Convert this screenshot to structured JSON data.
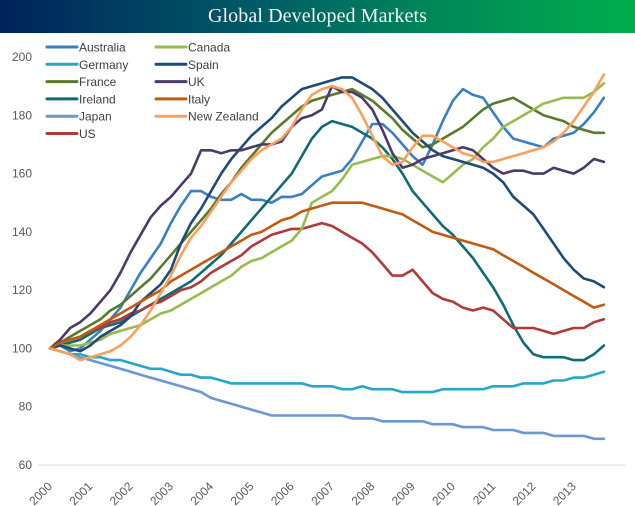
{
  "chart_data": {
    "type": "line",
    "title": "Global Developed Markets",
    "xlabel": "",
    "ylabel": "",
    "ylim": [
      60,
      200
    ],
    "yticks": [
      60,
      80,
      100,
      120,
      140,
      160,
      180,
      200
    ],
    "xlim": [
      2000,
      2014
    ],
    "xticks": [
      "2000",
      "2001",
      "2002",
      "2003",
      "2004",
      "2005",
      "2006",
      "2007",
      "2008",
      "2009",
      "2010",
      "2011",
      "2012",
      "2013"
    ],
    "grid": false,
    "legend_position": "top-left",
    "frequency": "quarterly",
    "x_start": 2000,
    "series": [
      {
        "name": "Australia",
        "color": "#3a7fc1",
        "values": [
          100,
          101,
          99,
          100,
          103,
          106,
          110,
          114,
          120,
          126,
          131,
          136,
          143,
          149,
          154,
          154,
          152,
          151,
          151,
          153,
          151,
          151,
          150,
          152,
          152,
          153,
          156,
          159,
          160,
          161,
          165,
          171,
          177,
          177,
          174,
          170,
          166,
          163,
          170,
          178,
          185,
          189,
          187,
          186,
          181,
          176,
          172,
          171,
          170,
          169,
          172,
          173,
          174,
          177,
          181,
          186
        ]
      },
      {
        "name": "Germany",
        "color": "#26a6c8",
        "values": [
          100,
          99,
          98,
          98,
          97,
          97,
          96,
          96,
          95,
          94,
          93,
          93,
          92,
          91,
          91,
          90,
          90,
          89,
          88,
          88,
          88,
          88,
          88,
          88,
          88,
          88,
          87,
          87,
          87,
          86,
          86,
          87,
          86,
          86,
          86,
          85,
          85,
          85,
          85,
          86,
          86,
          86,
          86,
          86,
          87,
          87,
          87,
          88,
          88,
          88,
          89,
          89,
          90,
          90,
          91,
          92
        ]
      },
      {
        "name": "France",
        "color": "#5a7a2a",
        "values": [
          100,
          102,
          104,
          106,
          108,
          110,
          113,
          115,
          118,
          121,
          124,
          128,
          132,
          136,
          140,
          144,
          148,
          153,
          157,
          162,
          166,
          170,
          174,
          177,
          180,
          183,
          185,
          186,
          187,
          188,
          189,
          187,
          185,
          182,
          179,
          175,
          172,
          169,
          170,
          172,
          174,
          176,
          179,
          182,
          184,
          185,
          186,
          184,
          182,
          180,
          179,
          178,
          176,
          175,
          174,
          174
        ]
      },
      {
        "name": "Ireland",
        "color": "#0f6b76",
        "values": [
          100,
          101,
          102,
          103,
          105,
          107,
          108,
          109,
          111,
          113,
          115,
          117,
          119,
          121,
          123,
          126,
          129,
          132,
          136,
          140,
          144,
          148,
          152,
          156,
          160,
          166,
          172,
          176,
          178,
          177,
          176,
          174,
          172,
          169,
          165,
          160,
          154,
          150,
          146,
          142,
          139,
          135,
          131,
          126,
          121,
          115,
          108,
          102,
          98,
          97,
          97,
          97,
          96,
          96,
          98,
          101
        ]
      },
      {
        "name": "Japan",
        "color": "#6a98d0",
        "values": [
          100,
          99,
          98,
          97,
          96,
          95,
          94,
          93,
          92,
          91,
          90,
          89,
          88,
          87,
          86,
          85,
          83,
          82,
          81,
          80,
          79,
          78,
          77,
          77,
          77,
          77,
          77,
          77,
          77,
          77,
          76,
          76,
          76,
          75,
          75,
          75,
          75,
          75,
          74,
          74,
          74,
          73,
          73,
          73,
          72,
          72,
          72,
          71,
          71,
          71,
          70,
          70,
          70,
          70,
          69,
          69
        ]
      },
      {
        "name": "US",
        "color": "#b0393a",
        "values": [
          100,
          102,
          103,
          104,
          106,
          107,
          109,
          110,
          112,
          113,
          115,
          116,
          118,
          120,
          121,
          123,
          126,
          128,
          130,
          132,
          135,
          137,
          139,
          140,
          141,
          141,
          142,
          143,
          142,
          140,
          138,
          136,
          133,
          129,
          125,
          125,
          127,
          123,
          119,
          117,
          116,
          114,
          113,
          114,
          113,
          110,
          107,
          107,
          107,
          106,
          105,
          106,
          107,
          107,
          109,
          110
        ]
      },
      {
        "name": "Canada",
        "color": "#97bb4d",
        "values": [
          100,
          101,
          101,
          101,
          102,
          103,
          105,
          106,
          107,
          108,
          110,
          112,
          113,
          115,
          117,
          119,
          121,
          123,
          125,
          128,
          130,
          131,
          133,
          135,
          137,
          141,
          150,
          152,
          154,
          158,
          163,
          164,
          165,
          166,
          166,
          165,
          163,
          161,
          159,
          157,
          160,
          163,
          165,
          169,
          172,
          176,
          178,
          180,
          182,
          184,
          185,
          186,
          186,
          186,
          188,
          191
        ]
      },
      {
        "name": "Spain",
        "color": "#1e4b7a",
        "values": [
          100,
          101,
          100,
          99,
          101,
          104,
          106,
          108,
          111,
          116,
          119,
          122,
          127,
          136,
          143,
          148,
          154,
          160,
          165,
          169,
          173,
          176,
          179,
          183,
          186,
          189,
          190,
          191,
          192,
          193,
          193,
          191,
          189,
          186,
          182,
          178,
          174,
          171,
          168,
          166,
          165,
          164,
          163,
          162,
          160,
          157,
          152,
          149,
          146,
          141,
          136,
          131,
          127,
          124,
          123,
          121
        ]
      },
      {
        "name": "UK",
        "color": "#4b3a6b",
        "values": [
          100,
          103,
          107,
          109,
          112,
          116,
          120,
          126,
          133,
          139,
          145,
          149,
          152,
          156,
          160,
          168,
          168,
          167,
          168,
          168,
          169,
          170,
          170,
          171,
          176,
          179,
          180,
          182,
          190,
          188,
          188,
          186,
          182,
          175,
          167,
          162,
          163,
          165,
          166,
          167,
          168,
          169,
          168,
          165,
          162,
          160,
          161,
          161,
          160,
          160,
          162,
          161,
          160,
          162,
          165,
          164
        ]
      },
      {
        "name": "Italy",
        "color": "#c25a0f",
        "values": [
          100,
          102,
          103,
          104,
          106,
          108,
          110,
          112,
          114,
          116,
          118,
          120,
          123,
          125,
          127,
          129,
          131,
          133,
          135,
          137,
          139,
          140,
          142,
          144,
          145,
          147,
          148,
          149,
          150,
          150,
          150,
          150,
          149,
          148,
          147,
          146,
          144,
          142,
          140,
          139,
          138,
          137,
          136,
          135,
          134,
          132,
          130,
          128,
          126,
          124,
          122,
          120,
          118,
          116,
          114,
          115
        ]
      },
      {
        "name": "New Zealand",
        "color": "#f9a05c",
        "values": [
          100,
          99,
          98,
          96,
          97,
          98,
          99,
          101,
          104,
          108,
          113,
          119,
          125,
          132,
          138,
          142,
          147,
          152,
          157,
          161,
          165,
          168,
          170,
          172,
          176,
          182,
          187,
          189,
          190,
          189,
          186,
          180,
          173,
          166,
          163,
          164,
          169,
          173,
          173,
          171,
          169,
          167,
          166,
          164,
          164,
          165,
          166,
          167,
          168,
          169,
          171,
          174,
          178,
          183,
          188,
          194
        ]
      }
    ]
  }
}
